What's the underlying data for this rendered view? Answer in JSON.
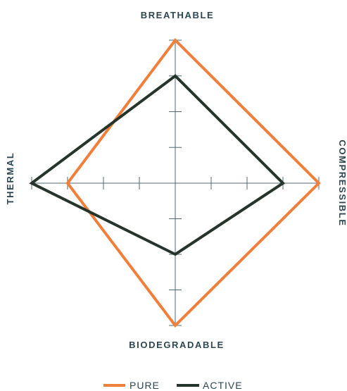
{
  "chart_data": {
    "type": "radar",
    "axes": [
      "BREATHABLE",
      "COMPRESSIBLE",
      "BIODEGRADABLE",
      "THERMAL"
    ],
    "scale_max": 4,
    "ticks_per_half_axis": 4,
    "series": [
      {
        "name": "PURE",
        "color": "#f07f3c",
        "values": [
          4,
          4,
          4,
          3
        ]
      },
      {
        "name": "ACTIVE",
        "color": "#26352b",
        "values": [
          3,
          3,
          2,
          4
        ]
      }
    ],
    "axis_color": "#4f6870",
    "legend_position": "bottom"
  }
}
